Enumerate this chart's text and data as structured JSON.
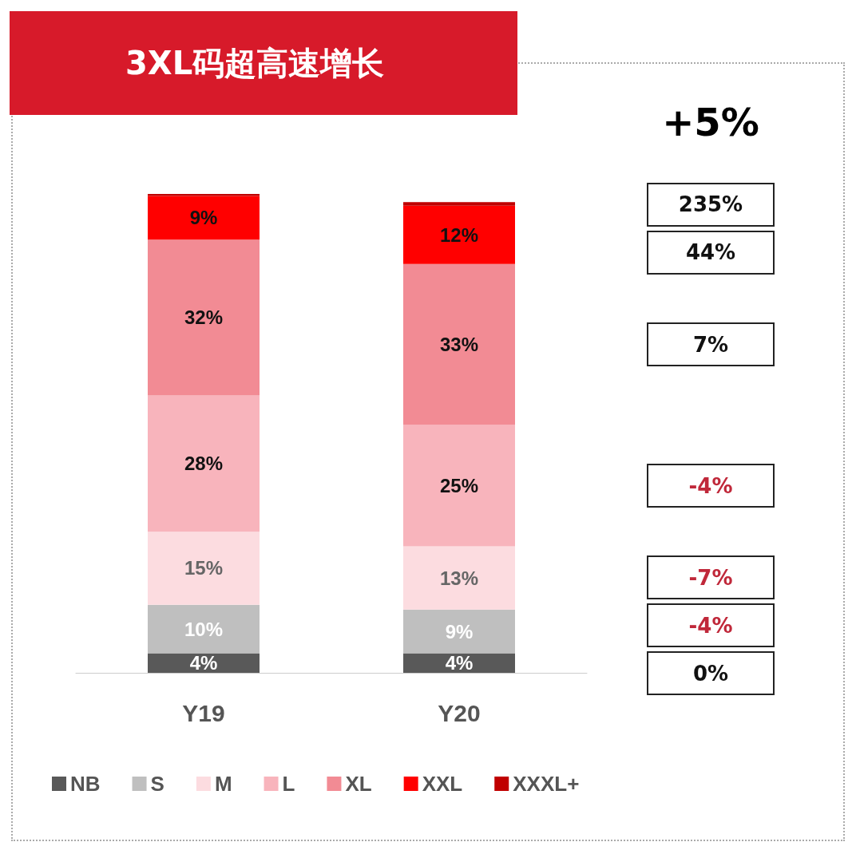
{
  "chart_data": {
    "type": "bar",
    "title": "3XL码超高速增长",
    "stacked": true,
    "legend": "bottom",
    "categories": [
      "Y19",
      "Y20"
    ],
    "series": [
      {
        "name": "NB",
        "color": "#595959",
        "values": [
          4,
          4
        ],
        "value_labels": [
          "4%",
          "4%"
        ]
      },
      {
        "name": "S",
        "color": "#bfbfbf",
        "values": [
          10,
          9
        ],
        "value_labels": [
          "10%",
          "9%"
        ]
      },
      {
        "name": "M",
        "color": "#fcdce0",
        "values": [
          15,
          13
        ],
        "value_labels": [
          "15%",
          "13%"
        ]
      },
      {
        "name": "L",
        "color": "#f8b4bc",
        "values": [
          28,
          25
        ],
        "value_labels": [
          "28%",
          "25%"
        ]
      },
      {
        "name": "XL",
        "color": "#f28b94",
        "values": [
          32,
          33
        ],
        "value_labels": [
          "32%",
          "33%"
        ]
      },
      {
        "name": "XXL",
        "color": "#ff0000",
        "values": [
          9,
          12
        ],
        "value_labels": [
          "9%",
          "12%"
        ]
      },
      {
        "name": "XXXL+",
        "color": "#c00000",
        "values": [
          0.4,
          0.7
        ],
        "value_labels": [
          null,
          null
        ]
      }
    ],
    "annotations": [
      "+5%",
      "235%",
      "44%",
      "7%",
      "-4%",
      "-7%",
      "-4%",
      "0%"
    ]
  }
}
